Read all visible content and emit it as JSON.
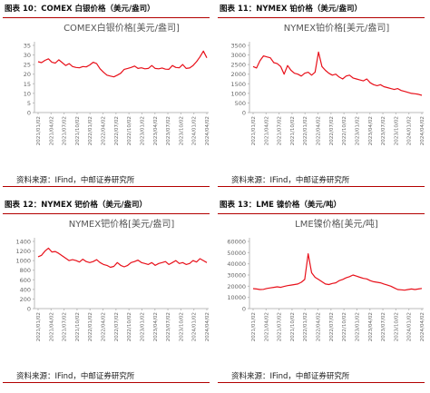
{
  "source": "资料来源：IFind，中邮证券研究所",
  "x_labels": [
    "2021/01/02",
    "2021/04/02",
    "2021/07/02",
    "2021/10/02",
    "2022/01/02",
    "2022/04/02",
    "2022/07/02",
    "2022/10/02",
    "2023/01/02",
    "2023/04/02",
    "2023/07/02",
    "2023/10/02",
    "2024/01/02",
    "2024/04/02"
  ],
  "colors": {
    "line": "#e8101a",
    "accent": "#b30000",
    "axis": "#bbbbbb",
    "text": "#666666"
  },
  "chart_data": [
    {
      "type": "line",
      "figure_label": "图表 10：COMEX 白银价格（美元/盎司）",
      "title": "COMEX白银价格[美元/盎司]",
      "ylim": [
        0,
        35
      ],
      "yticks": [
        0,
        5,
        10,
        15,
        20,
        25,
        30,
        35
      ],
      "grid": false,
      "series": [
        {
          "values": [
            26.5,
            26.0,
            27.2,
            28.0,
            26.2,
            25.8,
            27.5,
            26.0,
            24.5,
            25.5,
            24.0,
            23.5,
            23.3,
            24.0,
            23.8,
            24.8,
            26.2,
            25.5,
            22.8,
            21.0,
            19.5,
            19.0,
            18.6,
            19.5,
            20.5,
            22.5,
            23.0,
            23.5,
            24.2,
            23.0,
            23.3,
            22.8,
            23.0,
            24.5,
            23.0,
            22.8,
            23.2,
            22.6,
            22.5,
            24.5,
            23.5,
            23.3,
            25.0,
            23.0,
            23.2,
            24.5,
            26.5,
            29.0,
            32.0,
            28.5
          ]
        }
      ]
    },
    {
      "type": "line",
      "figure_label": "图表 11：NYMEX 铂价格（美元/盎司）",
      "title": "NYMEX铂价格[美元/盎司]",
      "ylim": [
        0,
        3500
      ],
      "yticks": [
        0,
        500,
        1000,
        1500,
        2000,
        2500,
        3000,
        3500
      ],
      "grid": false,
      "series": [
        {
          "values": [
            2400,
            2320,
            2700,
            2950,
            2900,
            2850,
            2600,
            2550,
            2400,
            2000,
            2450,
            2200,
            2050,
            2000,
            1900,
            2050,
            2100,
            1950,
            2100,
            3150,
            2400,
            2200,
            2050,
            1950,
            2000,
            1850,
            1750,
            1900,
            1950,
            1800,
            1750,
            1700,
            1650,
            1750,
            1550,
            1450,
            1400,
            1450,
            1350,
            1300,
            1250,
            1200,
            1250,
            1150,
            1100,
            1050,
            1000,
            980,
            950,
            900
          ]
        }
      ]
    },
    {
      "type": "line",
      "figure_label": "图表 12：NYMEX 钯价格（美元/盎司）",
      "title": "NYMEX钯价格[美元/盎司]",
      "ylim": [
        0,
        1400
      ],
      "yticks": [
        0,
        200,
        400,
        600,
        800,
        1000,
        1200,
        1400
      ],
      "grid": false,
      "series": [
        {
          "values": [
            1080,
            1110,
            1200,
            1260,
            1180,
            1190,
            1150,
            1100,
            1050,
            1000,
            1020,
            1000,
            970,
            1030,
            980,
            960,
            980,
            1020,
            960,
            920,
            900,
            860,
            880,
            960,
            900,
            870,
            900,
            960,
            980,
            1010,
            960,
            940,
            920,
            960,
            900,
            940,
            960,
            980,
            920,
            960,
            1000,
            940,
            960,
            920,
            940,
            1000,
            970,
            1040,
            1000,
            960
          ]
        }
      ]
    },
    {
      "type": "line",
      "figure_label": "图表 13：LME 镍价格（美元/吨）",
      "title": "LME镍价格[美元/吨]",
      "ylim": [
        0,
        60000
      ],
      "yticks": [
        0,
        10000,
        20000,
        30000,
        40000,
        50000,
        60000
      ],
      "grid": false,
      "series": [
        {
          "values": [
            17800,
            17500,
            17000,
            17200,
            18000,
            18500,
            19000,
            19500,
            19000,
            19800,
            20500,
            21000,
            21500,
            22000,
            23500,
            26000,
            49000,
            32000,
            28000,
            26000,
            24000,
            22000,
            21500,
            22500,
            23000,
            25000,
            26000,
            27500,
            28500,
            30000,
            29000,
            28000,
            27000,
            26500,
            25000,
            24000,
            23500,
            23000,
            22000,
            21000,
            20000,
            18500,
            17000,
            16800,
            16500,
            17000,
            17500,
            17000,
            17500,
            18000
          ]
        }
      ]
    }
  ]
}
